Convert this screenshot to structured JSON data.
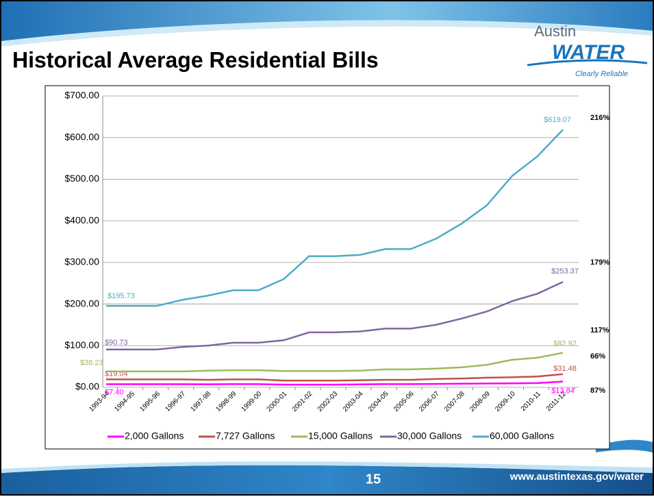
{
  "slide": {
    "title": "Historical Average Residential Bills",
    "logo": {
      "city": "Austin",
      "name": "WATER",
      "tagline": "Clearly Reliable"
    },
    "page_number": "15",
    "url": "www.austintexas.gov/water"
  },
  "chart_data": {
    "type": "line",
    "categories": [
      "1993-94",
      "1994-95",
      "1995-96",
      "1996-97",
      "1997-98",
      "1998-99",
      "1999-00",
      "2000-01",
      "2001-02",
      "2002-03",
      "2003-04",
      "2004-05",
      "2005-06",
      "2006-07",
      "2007-08",
      "2008-09",
      "2009-10",
      "2010-11",
      "2011-12"
    ],
    "ylim": [
      0,
      700
    ],
    "yticks": [
      {
        "value": 0,
        "label": "$0.00"
      },
      {
        "value": 100,
        "label": "$100.00"
      },
      {
        "value": 200,
        "label": "$200.00"
      },
      {
        "value": 300,
        "label": "$300.00"
      },
      {
        "value": 400,
        "label": "$400.00"
      },
      {
        "value": 500,
        "label": "$500.00"
      },
      {
        "value": 600,
        "label": "$600.00"
      },
      {
        "value": 700,
        "label": "$700.00"
      }
    ],
    "grid": true,
    "legend": "bottom",
    "annotations": [
      "216%",
      "179%",
      "117%",
      "66%",
      "87%"
    ],
    "series": [
      {
        "name": "2,000 Gallons",
        "color": "#ff00ff",
        "values": [
          7.4,
          7.4,
          7.4,
          7.4,
          7.2,
          7.5,
          7.5,
          6.5,
          6.5,
          6.5,
          7,
          7.5,
          7.5,
          8,
          8.5,
          9,
          9.5,
          10,
          13.84
        ],
        "value_labels": [
          "$7.40",
          null,
          null,
          null,
          null,
          null,
          null,
          null,
          null,
          null,
          null,
          null,
          null,
          null,
          null,
          null,
          null,
          null,
          "$13.84"
        ]
      },
      {
        "name": "7,727 Gallons",
        "color": "#c0504d",
        "values": [
          19.04,
          19,
          19,
          19,
          18,
          19,
          19,
          16,
          16,
          16,
          17,
          18,
          18,
          20,
          21,
          23,
          24,
          26,
          31.48
        ],
        "value_labels": [
          "$19.04",
          null,
          null,
          null,
          null,
          null,
          null,
          null,
          null,
          null,
          null,
          null,
          null,
          null,
          null,
          null,
          null,
          null,
          "$31.48"
        ]
      },
      {
        "name": "15,000 Gallons",
        "color": "#9bbb59",
        "values": [
          38.23,
          38,
          38,
          38,
          40,
          41,
          41,
          39,
          39,
          39,
          40,
          43,
          43,
          45,
          48,
          54,
          66,
          71,
          82.92
        ],
        "value_labels": [
          "$38.23",
          null,
          null,
          null,
          null,
          null,
          null,
          null,
          null,
          null,
          null,
          null,
          null,
          null,
          null,
          null,
          null,
          null,
          "$82.92"
        ]
      },
      {
        "name": "30,000 Gallons",
        "color": "#8064a2",
        "values": [
          90.73,
          90.73,
          90.73,
          97,
          100,
          107,
          107,
          113,
          132,
          132,
          134,
          141,
          141,
          150,
          165,
          182,
          207,
          225,
          253.37
        ],
        "value_labels": [
          "$90.73",
          null,
          null,
          null,
          null,
          null,
          null,
          null,
          null,
          null,
          null,
          null,
          null,
          null,
          null,
          null,
          null,
          null,
          "$253.37"
        ]
      },
      {
        "name": "60,000 Gallons",
        "color": "#4bacc6",
        "values": [
          195.73,
          195.73,
          195.73,
          210,
          220,
          233,
          233,
          260,
          315,
          315,
          318,
          332,
          332,
          357,
          393,
          437,
          508,
          555,
          619.07
        ],
        "value_labels": [
          "$195.73",
          null,
          null,
          null,
          null,
          null,
          null,
          null,
          null,
          null,
          null,
          null,
          null,
          null,
          null,
          null,
          null,
          null,
          "$619.07"
        ]
      }
    ]
  }
}
